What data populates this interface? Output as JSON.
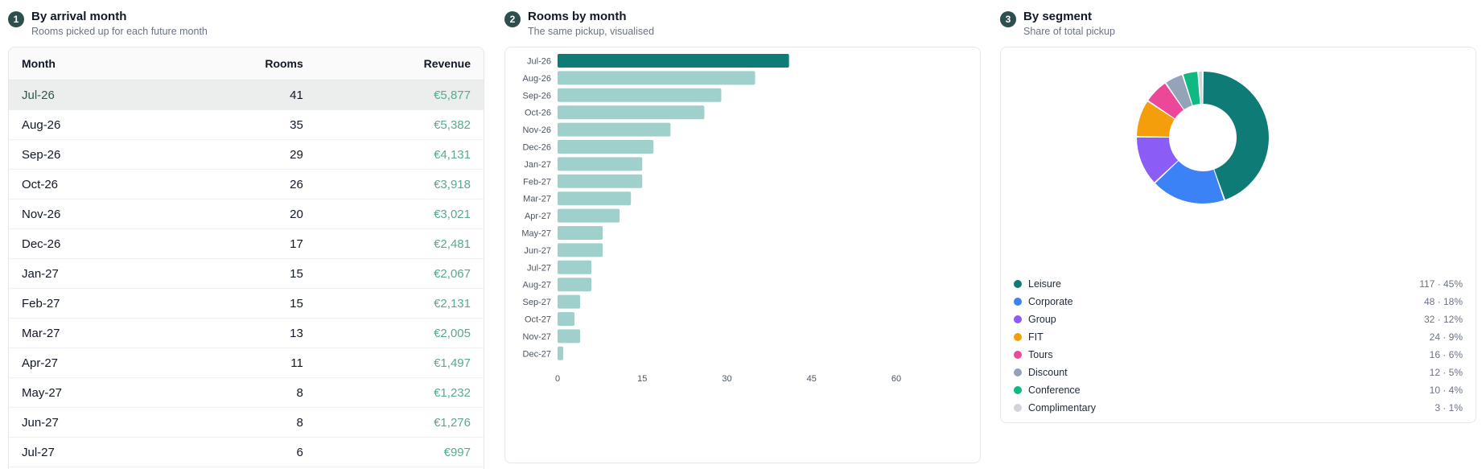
{
  "panels": [
    {
      "step": "1",
      "title": "By arrival month",
      "subtitle": "Rooms picked up for each future month"
    },
    {
      "step": "2",
      "title": "Rooms by month",
      "subtitle": "The same pickup, visualised"
    },
    {
      "step": "3",
      "title": "By segment",
      "subtitle": "Share of total pickup"
    }
  ],
  "table": {
    "headers": {
      "month": "Month",
      "rooms": "Rooms",
      "revenue": "Revenue"
    },
    "rows": [
      {
        "month": "Jul-26",
        "rooms": "41",
        "revenue": "€5,877"
      },
      {
        "month": "Aug-26",
        "rooms": "35",
        "revenue": "€5,382"
      },
      {
        "month": "Sep-26",
        "rooms": "29",
        "revenue": "€4,131"
      },
      {
        "month": "Oct-26",
        "rooms": "26",
        "revenue": "€3,918"
      },
      {
        "month": "Nov-26",
        "rooms": "20",
        "revenue": "€3,021"
      },
      {
        "month": "Dec-26",
        "rooms": "17",
        "revenue": "€2,481"
      },
      {
        "month": "Jan-27",
        "rooms": "15",
        "revenue": "€2,067"
      },
      {
        "month": "Feb-27",
        "rooms": "15",
        "revenue": "€2,131"
      },
      {
        "month": "Mar-27",
        "rooms": "13",
        "revenue": "€2,005"
      },
      {
        "month": "Apr-27",
        "rooms": "11",
        "revenue": "€1,497"
      },
      {
        "month": "May-27",
        "rooms": "8",
        "revenue": "€1,232"
      },
      {
        "month": "Jun-27",
        "rooms": "8",
        "revenue": "€1,276"
      },
      {
        "month": "Jul-27",
        "rooms": "6",
        "revenue": "€997"
      }
    ]
  },
  "colors": {
    "bar_highlight": "#0f7b76",
    "bar_normal": "#a0d0cc",
    "segments": [
      "#0f7b76",
      "#3b82f6",
      "#8b5cf6",
      "#f59e0b",
      "#ec4899",
      "#94a3b8",
      "#10b981",
      "#d1d5db"
    ]
  },
  "chart_data": [
    {
      "type": "bar",
      "orientation": "horizontal",
      "categories": [
        "Jul-26",
        "Aug-26",
        "Sep-26",
        "Oct-26",
        "Nov-26",
        "Dec-26",
        "Jan-27",
        "Feb-27",
        "Mar-27",
        "Apr-27",
        "May-27",
        "Jun-27",
        "Jul-27",
        "Aug-27",
        "Sep-27",
        "Oct-27",
        "Nov-27",
        "Dec-27"
      ],
      "values": [
        41,
        35,
        29,
        26,
        20,
        17,
        15,
        15,
        13,
        11,
        8,
        8,
        6,
        6,
        4,
        3,
        4,
        1
      ],
      "xlim": [
        0,
        60
      ],
      "xticks": [
        "0",
        "15",
        "30",
        "45",
        "60"
      ],
      "grid": false
    },
    {
      "type": "pie",
      "donut": true,
      "labels": [
        "Leisure",
        "Corporate",
        "Group",
        "FIT",
        "Tours",
        "Discount",
        "Conference",
        "Complimentary"
      ],
      "values": [
        117,
        48,
        32,
        24,
        16,
        12,
        10,
        3
      ],
      "display": [
        "117 · 45%",
        "48 · 18%",
        "32 · 12%",
        "24 · 9%",
        "16 · 6%",
        "12 · 5%",
        "10 · 4%",
        "3 · 1%"
      ],
      "legend": "bottom"
    }
  ]
}
